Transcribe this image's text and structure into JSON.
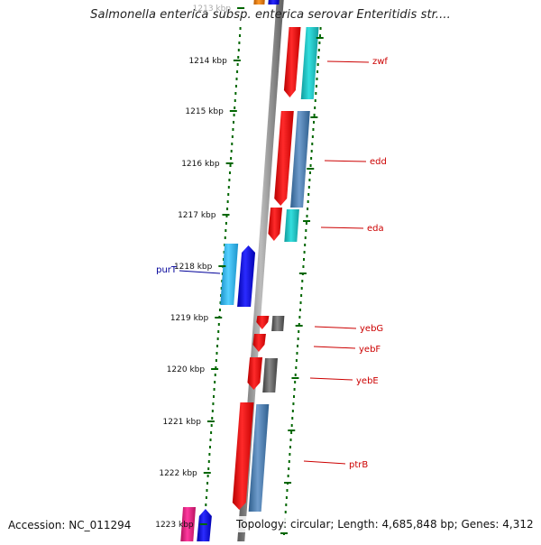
{
  "header": {
    "title": "Salmonella enterica subsp. enterica serovar Enteritidis str...."
  },
  "footer": {
    "accession": "Accession: NC_011294",
    "stats": "Topology: circular; Length: 4,685,848 bp; Genes: 4,312"
  },
  "ruler": {
    "ticks": [
      {
        "label": "1213 kbp"
      },
      {
        "label": "1214 kbp"
      },
      {
        "label": "1215 kbp"
      },
      {
        "label": "1216 kbp"
      },
      {
        "label": "1217 kbp"
      },
      {
        "label": "1218 kbp"
      },
      {
        "label": "1219 kbp"
      },
      {
        "label": "1220 kbp"
      },
      {
        "label": "1221 kbp"
      },
      {
        "label": "1222 kbp"
      },
      {
        "label": "1223 kbp"
      }
    ]
  },
  "gene_labels": [
    {
      "name": "zwf",
      "color": "#cc0000"
    },
    {
      "name": "edd",
      "color": "#cc0000"
    },
    {
      "name": "eda",
      "color": "#cc0000"
    },
    {
      "name": "purT",
      "color": "#000099"
    },
    {
      "name": "yebG",
      "color": "#cc0000"
    },
    {
      "name": "yebF",
      "color": "#cc0000"
    },
    {
      "name": "yebE",
      "color": "#cc0000"
    },
    {
      "name": "ptrB",
      "color": "#cc0000"
    }
  ],
  "colors": {
    "backbone": "#8a8a8a",
    "gene_red": "#ff0000",
    "gene_cyan": "#22cccc",
    "gene_steel": "#4a7fb0",
    "gene_gray": "#666666",
    "gene_blue": "#0000ee",
    "gene_sky": "#33bbee",
    "gene_pink": "#ee2288",
    "gene_orange": "#ee7700",
    "tick_green": "#006600"
  }
}
